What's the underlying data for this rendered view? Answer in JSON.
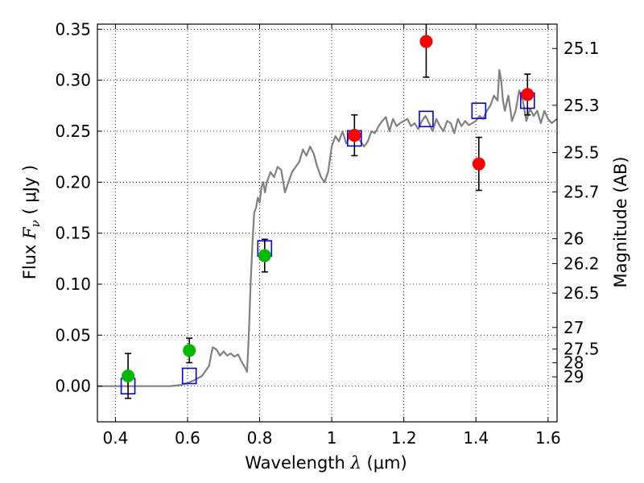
{
  "chart_data": {
    "type": "scatter",
    "xlabel": {
      "prefix": "Wavelength  ",
      "symbol": "λ",
      "unit": " (μm)"
    },
    "ylabel": {
      "prefix": "Flux  ",
      "symbol": "F",
      "subscript": "ν",
      "unit": "  ( μJy )"
    },
    "y2label": "Magnitude (AB)",
    "xlim": [
      0.35,
      1.625
    ],
    "ylim": [
      -0.035,
      0.355
    ],
    "grid": true,
    "x_ticks": [
      {
        "value": 0.4,
        "label": "0.4"
      },
      {
        "value": 0.6,
        "label": "0.6"
      },
      {
        "value": 0.8,
        "label": "0.8"
      },
      {
        "value": 1.0,
        "label": "1"
      },
      {
        "value": 1.2,
        "label": "1.2"
      },
      {
        "value": 1.4,
        "label": "1.4"
      },
      {
        "value": 1.6,
        "label": "1.6"
      }
    ],
    "y_ticks": [
      {
        "value": 0.0,
        "label": "0.00"
      },
      {
        "value": 0.05,
        "label": "0.05"
      },
      {
        "value": 0.1,
        "label": "0.10"
      },
      {
        "value": 0.15,
        "label": "0.15"
      },
      {
        "value": 0.2,
        "label": "0.20"
      },
      {
        "value": 0.25,
        "label": "0.25"
      },
      {
        "value": 0.3,
        "label": "0.30"
      },
      {
        "value": 0.35,
        "label": "0.35"
      }
    ],
    "y2_ticks": [
      {
        "value": 25.1,
        "label": "25.1"
      },
      {
        "value": 25.3,
        "label": "25.3"
      },
      {
        "value": 25.5,
        "label": "25.5"
      },
      {
        "value": 25.7,
        "label": "25.7"
      },
      {
        "value": 26,
        "label": "26"
      },
      {
        "value": 26.2,
        "label": "26.2"
      },
      {
        "value": 26.5,
        "label": "26.5"
      },
      {
        "value": 27,
        "label": "27"
      },
      {
        "value": 27.5,
        "label": "27.5"
      },
      {
        "value": 28,
        "label": "28"
      },
      {
        "value": 29,
        "label": "29"
      }
    ],
    "series": [
      {
        "kind": "line",
        "color": "#808080",
        "x": [
          0.35,
          0.55,
          0.58,
          0.6,
          0.62,
          0.64,
          0.65,
          0.66,
          0.665,
          0.67,
          0.68,
          0.69,
          0.7,
          0.71,
          0.72,
          0.73,
          0.74,
          0.75,
          0.76,
          0.765,
          0.77,
          0.775,
          0.78,
          0.785,
          0.79,
          0.795,
          0.8,
          0.805,
          0.81,
          0.815,
          0.82,
          0.83,
          0.84,
          0.85,
          0.86,
          0.87,
          0.88,
          0.89,
          0.9,
          0.91,
          0.92,
          0.93,
          0.94,
          0.95,
          0.96,
          0.97,
          0.98,
          0.99,
          1.0,
          1.01,
          1.02,
          1.03,
          1.04,
          1.05,
          1.06,
          1.07,
          1.08,
          1.09,
          1.1,
          1.11,
          1.12,
          1.13,
          1.14,
          1.15,
          1.16,
          1.17,
          1.18,
          1.19,
          1.2,
          1.21,
          1.22,
          1.23,
          1.24,
          1.25,
          1.26,
          1.27,
          1.28,
          1.29,
          1.3,
          1.31,
          1.32,
          1.33,
          1.34,
          1.35,
          1.36,
          1.37,
          1.38,
          1.39,
          1.4,
          1.41,
          1.42,
          1.43,
          1.44,
          1.45,
          1.46,
          1.465,
          1.47,
          1.475,
          1.48,
          1.49,
          1.5,
          1.51,
          1.52,
          1.53,
          1.54,
          1.55,
          1.56,
          1.57,
          1.58,
          1.59,
          1.6,
          1.61,
          1.625
        ],
        "y": [
          0.0,
          0.0,
          0.001,
          0.003,
          0.006,
          0.01,
          0.015,
          0.02,
          0.03,
          0.038,
          0.036,
          0.03,
          0.034,
          0.03,
          0.032,
          0.029,
          0.031,
          0.024,
          0.018,
          0.014,
          0.05,
          0.1,
          0.14,
          0.17,
          0.175,
          0.185,
          0.18,
          0.195,
          0.2,
          0.19,
          0.2,
          0.21,
          0.205,
          0.215,
          0.212,
          0.19,
          0.2,
          0.21,
          0.215,
          0.22,
          0.232,
          0.226,
          0.235,
          0.228,
          0.215,
          0.205,
          0.2,
          0.21,
          0.235,
          0.245,
          0.24,
          0.25,
          0.238,
          0.245,
          0.25,
          0.245,
          0.24,
          0.235,
          0.24,
          0.25,
          0.248,
          0.255,
          0.26,
          0.264,
          0.25,
          0.262,
          0.255,
          0.258,
          0.26,
          0.262,
          0.255,
          0.258,
          0.252,
          0.26,
          0.265,
          0.258,
          0.25,
          0.262,
          0.255,
          0.25,
          0.26,
          0.258,
          0.248,
          0.262,
          0.255,
          0.26,
          0.256,
          0.258,
          0.26,
          0.265,
          0.262,
          0.27,
          0.275,
          0.285,
          0.28,
          0.31,
          0.3,
          0.28,
          0.27,
          0.285,
          0.26,
          0.27,
          0.29,
          0.28,
          0.26,
          0.272,
          0.265,
          0.27,
          0.258,
          0.27,
          0.262,
          0.258,
          0.262
        ]
      },
      {
        "kind": "open-square",
        "color": "#0000ff",
        "x": [
          0.435,
          0.605,
          0.814,
          1.063,
          1.262,
          1.408,
          1.543
        ],
        "y": [
          0.0,
          0.01,
          0.135,
          0.243,
          0.262,
          0.27,
          0.28
        ]
      },
      {
        "kind": "filled-circle-errorbar",
        "color": "#00bb00",
        "x": [
          0.435,
          0.605,
          0.814
        ],
        "y": [
          0.01,
          0.035,
          0.128
        ],
        "yerr": [
          0.022,
          0.012,
          0.016
        ]
      },
      {
        "kind": "filled-circle-errorbar",
        "color": "#ff0000",
        "x": [
          1.063,
          1.262,
          1.408,
          1.543
        ],
        "y": [
          0.246,
          0.338,
          0.218,
          0.286
        ],
        "yerr": [
          0.02,
          0.035,
          0.026,
          0.02
        ]
      }
    ]
  }
}
